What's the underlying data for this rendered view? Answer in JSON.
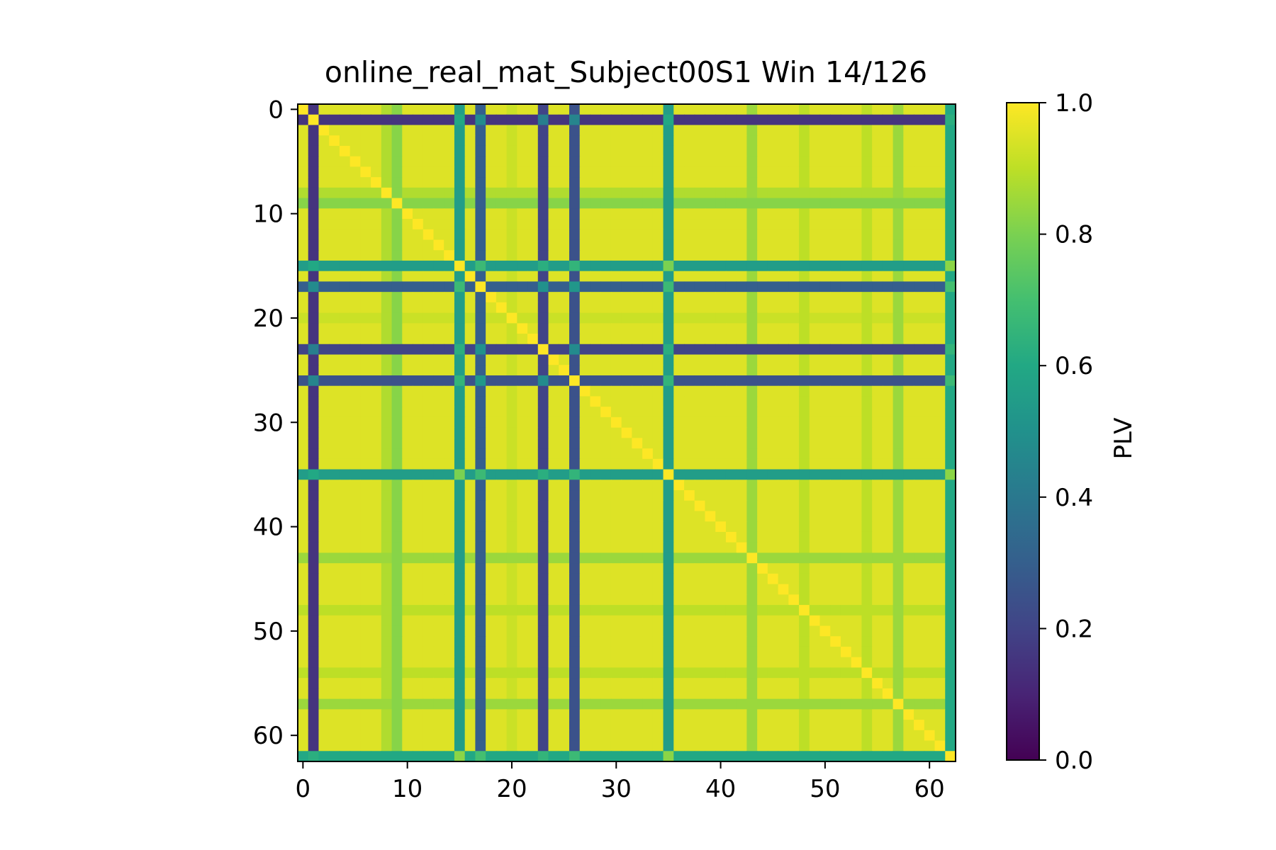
{
  "chart_data": {
    "type": "heatmap",
    "title": "online_real_mat_Subject00S1 Win 14/126",
    "xlabel": "",
    "ylabel": "",
    "size": 63,
    "xlim": [
      -0.5,
      62.5
    ],
    "ylim": [
      62.5,
      -0.5
    ],
    "x_ticks": [
      0,
      10,
      20,
      30,
      40,
      50,
      60
    ],
    "y_ticks": [
      0,
      10,
      20,
      30,
      40,
      50,
      60
    ],
    "colormap": "viridis",
    "colorbar": {
      "label": "PLV",
      "range": [
        0.0,
        1.0
      ],
      "ticks": [
        "0.0",
        "0.2",
        "0.4",
        "0.6",
        "0.8",
        "1.0"
      ]
    },
    "diagonal_value": 1.0,
    "base_value": 0.95,
    "channel_values": [
      {
        "channel": 1,
        "value": 0.15
      },
      {
        "channel": 9,
        "value": 0.82
      },
      {
        "channel": 15,
        "value": 0.55
      },
      {
        "channel": 17,
        "value": 0.3
      },
      {
        "channel": 23,
        "value": 0.2
      },
      {
        "channel": 26,
        "value": 0.25
      },
      {
        "channel": 35,
        "value": 0.55
      },
      {
        "channel": 43,
        "value": 0.85
      },
      {
        "channel": 48,
        "value": 0.9
      },
      {
        "channel": 57,
        "value": 0.85
      },
      {
        "channel": 62,
        "value": 0.6
      },
      {
        "channel": 8,
        "value": 0.88
      },
      {
        "channel": 20,
        "value": 0.92
      },
      {
        "channel": 54,
        "value": 0.9
      }
    ]
  }
}
